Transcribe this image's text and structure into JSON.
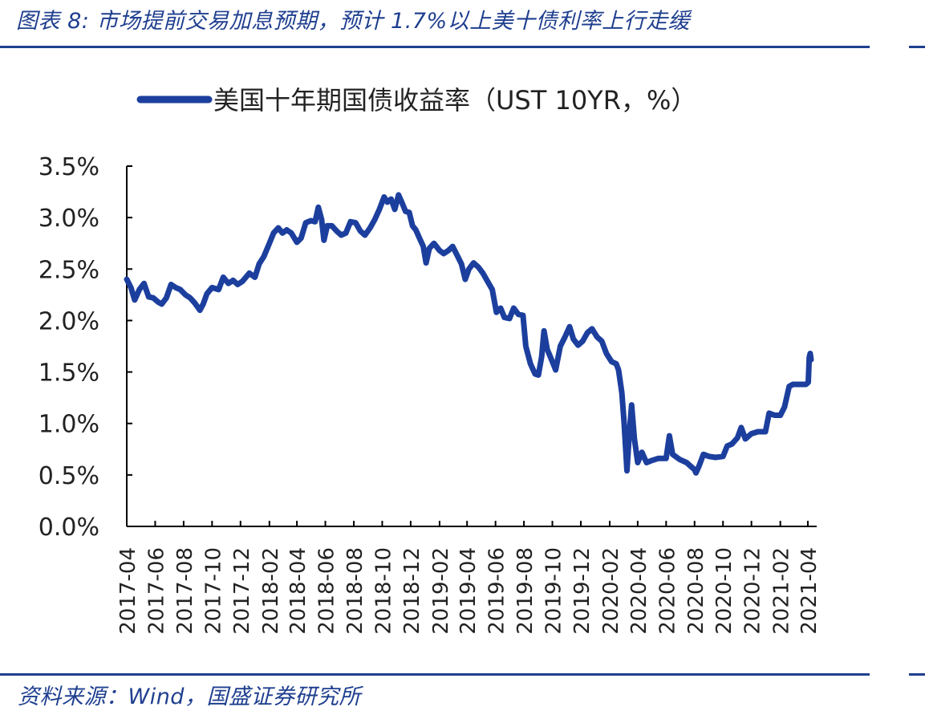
{
  "figure": {
    "title": "图表 8:  市场提前交易加息预期，预计 1.7%以上美十债利率上行走缓",
    "source": "资料来源：Wind，国盛证券研究所"
  },
  "colors": {
    "accent": "#1f3f8f",
    "series": "#1c3f9e",
    "axis": "#000000"
  },
  "chart_data": {
    "type": "line",
    "title": "",
    "xlabel": "",
    "ylabel": "",
    "legend_position": "top-center",
    "grid": false,
    "ylim": [
      0.0,
      3.5
    ],
    "y_ticks": [
      "0.0%",
      "0.5%",
      "1.0%",
      "1.5%",
      "2.0%",
      "2.5%",
      "3.0%",
      "3.5%"
    ],
    "x_ticks": [
      "2017-04",
      "2017-06",
      "2017-08",
      "2017-10",
      "2017-12",
      "2018-02",
      "2018-04",
      "2018-06",
      "2018-08",
      "2018-10",
      "2018-12",
      "2019-02",
      "2019-04",
      "2019-06",
      "2019-08",
      "2019-10",
      "2019-12",
      "2020-02",
      "2020-04",
      "2020-06",
      "2020-08",
      "2020-10",
      "2020-12",
      "2021-02",
      "2021-04"
    ],
    "series": [
      {
        "name": "美国十年期国债收益率（UST 10YR，%）",
        "points": [
          [
            "2017-04-01",
            2.4
          ],
          [
            "2017-04-10",
            2.32
          ],
          [
            "2017-04-18",
            2.2
          ],
          [
            "2017-04-28",
            2.3
          ],
          [
            "2017-05-08",
            2.36
          ],
          [
            "2017-05-18",
            2.23
          ],
          [
            "2017-05-28",
            2.22
          ],
          [
            "2017-06-07",
            2.18
          ],
          [
            "2017-06-15",
            2.16
          ],
          [
            "2017-06-25",
            2.22
          ],
          [
            "2017-07-05",
            2.35
          ],
          [
            "2017-07-15",
            2.32
          ],
          [
            "2017-07-25",
            2.3
          ],
          [
            "2017-08-05",
            2.25
          ],
          [
            "2017-08-15",
            2.22
          ],
          [
            "2017-08-25",
            2.17
          ],
          [
            "2017-09-05",
            2.1
          ],
          [
            "2017-09-12",
            2.16
          ],
          [
            "2017-09-20",
            2.26
          ],
          [
            "2017-10-01",
            2.32
          ],
          [
            "2017-10-15",
            2.3
          ],
          [
            "2017-10-25",
            2.42
          ],
          [
            "2017-11-05",
            2.36
          ],
          [
            "2017-11-15",
            2.39
          ],
          [
            "2017-11-25",
            2.35
          ],
          [
            "2017-12-05",
            2.38
          ],
          [
            "2017-12-20",
            2.46
          ],
          [
            "2018-01-01",
            2.42
          ],
          [
            "2018-01-10",
            2.55
          ],
          [
            "2018-01-20",
            2.62
          ],
          [
            "2018-02-01",
            2.75
          ],
          [
            "2018-02-10",
            2.85
          ],
          [
            "2018-02-20",
            2.9
          ],
          [
            "2018-03-01",
            2.85
          ],
          [
            "2018-03-10",
            2.88
          ],
          [
            "2018-03-20",
            2.85
          ],
          [
            "2018-04-01",
            2.76
          ],
          [
            "2018-04-10",
            2.8
          ],
          [
            "2018-04-20",
            2.95
          ],
          [
            "2018-05-01",
            2.97
          ],
          [
            "2018-05-10",
            2.96
          ],
          [
            "2018-05-17",
            3.1
          ],
          [
            "2018-05-24",
            2.98
          ],
          [
            "2018-05-29",
            2.78
          ],
          [
            "2018-06-05",
            2.92
          ],
          [
            "2018-06-15",
            2.92
          ],
          [
            "2018-06-25",
            2.87
          ],
          [
            "2018-07-05",
            2.83
          ],
          [
            "2018-07-15",
            2.85
          ],
          [
            "2018-07-25",
            2.96
          ],
          [
            "2018-08-05",
            2.95
          ],
          [
            "2018-08-15",
            2.87
          ],
          [
            "2018-08-25",
            2.83
          ],
          [
            "2018-09-05",
            2.9
          ],
          [
            "2018-09-15",
            2.98
          ],
          [
            "2018-09-25",
            3.08
          ],
          [
            "2018-10-05",
            3.2
          ],
          [
            "2018-10-12",
            3.15
          ],
          [
            "2018-10-20",
            3.18
          ],
          [
            "2018-10-28",
            3.08
          ],
          [
            "2018-11-05",
            3.22
          ],
          [
            "2018-11-12",
            3.15
          ],
          [
            "2018-11-20",
            3.06
          ],
          [
            "2018-11-28",
            3.05
          ],
          [
            "2018-12-05",
            2.92
          ],
          [
            "2018-12-12",
            2.88
          ],
          [
            "2018-12-20",
            2.8
          ],
          [
            "2018-12-28",
            2.72
          ],
          [
            "2019-01-03",
            2.56
          ],
          [
            "2019-01-10",
            2.7
          ],
          [
            "2019-01-20",
            2.75
          ],
          [
            "2019-02-01",
            2.68
          ],
          [
            "2019-02-10",
            2.65
          ],
          [
            "2019-02-20",
            2.68
          ],
          [
            "2019-03-01",
            2.72
          ],
          [
            "2019-03-10",
            2.64
          ],
          [
            "2019-03-20",
            2.55
          ],
          [
            "2019-03-28",
            2.4
          ],
          [
            "2019-04-05",
            2.5
          ],
          [
            "2019-04-15",
            2.56
          ],
          [
            "2019-04-25",
            2.52
          ],
          [
            "2019-05-05",
            2.46
          ],
          [
            "2019-05-15",
            2.38
          ],
          [
            "2019-05-25",
            2.3
          ],
          [
            "2019-06-03",
            2.08
          ],
          [
            "2019-06-12",
            2.12
          ],
          [
            "2019-06-20",
            2.03
          ],
          [
            "2019-07-01",
            2.02
          ],
          [
            "2019-07-10",
            2.12
          ],
          [
            "2019-07-20",
            2.06
          ],
          [
            "2019-07-30",
            2.05
          ],
          [
            "2019-08-05",
            1.75
          ],
          [
            "2019-08-15",
            1.58
          ],
          [
            "2019-08-25",
            1.48
          ],
          [
            "2019-09-01",
            1.47
          ],
          [
            "2019-09-08",
            1.65
          ],
          [
            "2019-09-13",
            1.9
          ],
          [
            "2019-09-20",
            1.72
          ],
          [
            "2019-10-01",
            1.6
          ],
          [
            "2019-10-08",
            1.52
          ],
          [
            "2019-10-18",
            1.75
          ],
          [
            "2019-10-28",
            1.84
          ],
          [
            "2019-11-07",
            1.94
          ],
          [
            "2019-11-15",
            1.82
          ],
          [
            "2019-11-25",
            1.76
          ],
          [
            "2019-12-05",
            1.8
          ],
          [
            "2019-12-15",
            1.88
          ],
          [
            "2019-12-25",
            1.92
          ],
          [
            "2020-01-05",
            1.84
          ],
          [
            "2020-01-15",
            1.8
          ],
          [
            "2020-01-25",
            1.68
          ],
          [
            "2020-02-05",
            1.6
          ],
          [
            "2020-02-15",
            1.58
          ],
          [
            "2020-02-20",
            1.52
          ],
          [
            "2020-02-27",
            1.3
          ],
          [
            "2020-03-03",
            1.0
          ],
          [
            "2020-03-09",
            0.54
          ],
          [
            "2020-03-14",
            0.9
          ],
          [
            "2020-03-19",
            1.18
          ],
          [
            "2020-03-25",
            0.85
          ],
          [
            "2020-04-01",
            0.62
          ],
          [
            "2020-04-10",
            0.72
          ],
          [
            "2020-04-20",
            0.62
          ],
          [
            "2020-05-01",
            0.64
          ],
          [
            "2020-05-15",
            0.66
          ],
          [
            "2020-06-01",
            0.66
          ],
          [
            "2020-06-08",
            0.88
          ],
          [
            "2020-06-15",
            0.7
          ],
          [
            "2020-06-30",
            0.65
          ],
          [
            "2020-07-15",
            0.62
          ],
          [
            "2020-08-01",
            0.55
          ],
          [
            "2020-08-04",
            0.52
          ],
          [
            "2020-08-10",
            0.58
          ],
          [
            "2020-08-20",
            0.7
          ],
          [
            "2020-09-01",
            0.68
          ],
          [
            "2020-09-15",
            0.67
          ],
          [
            "2020-10-01",
            0.68
          ],
          [
            "2020-10-10",
            0.78
          ],
          [
            "2020-10-20",
            0.8
          ],
          [
            "2020-11-01",
            0.86
          ],
          [
            "2020-11-09",
            0.96
          ],
          [
            "2020-11-18",
            0.85
          ],
          [
            "2020-12-01",
            0.9
          ],
          [
            "2020-12-15",
            0.92
          ],
          [
            "2020-12-31",
            0.92
          ],
          [
            "2021-01-08",
            1.1
          ],
          [
            "2021-01-20",
            1.08
          ],
          [
            "2021-02-01",
            1.08
          ],
          [
            "2021-02-10",
            1.16
          ],
          [
            "2021-02-20",
            1.36
          ],
          [
            "2021-02-28",
            1.38
          ],
          [
            "2021-03-10",
            1.38
          ],
          [
            "2021-03-20",
            1.38
          ],
          [
            "2021-03-28",
            1.38
          ],
          [
            "2021-04-02",
            1.4
          ],
          [
            "2021-04-04",
            1.64
          ],
          [
            "2021-04-06",
            1.68
          ],
          [
            "2021-04-08",
            1.62
          ]
        ]
      }
    ]
  }
}
